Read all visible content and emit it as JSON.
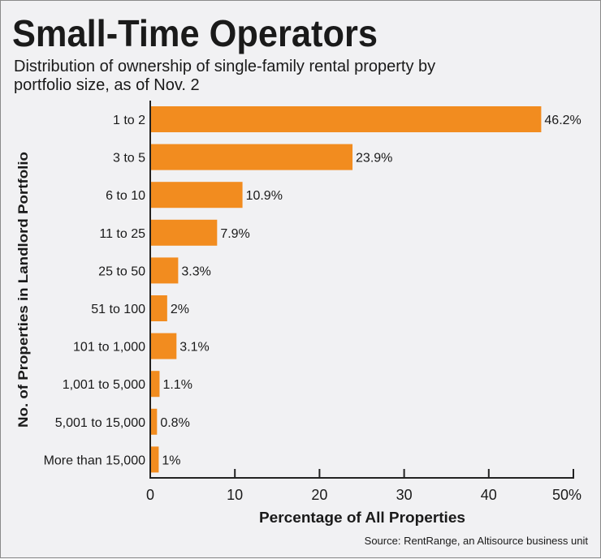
{
  "chart_data": {
    "type": "bar",
    "orientation": "horizontal",
    "title": "Small-Time Operators",
    "subtitle_lines": [
      "Distribution of ownership of single-family rental property by",
      "portfolio size, as of Nov. 2"
    ],
    "xlabel": "Percentage of All Properties",
    "ylabel": "No. of Properties in Landlord Portfolio",
    "source": "Source: RentRange, an Altisource business unit",
    "categories": [
      "1 to 2",
      "3 to 5",
      "6 to 10",
      "11 to 25",
      "25 to 50",
      "51 to 100",
      "101 to 1,000",
      "1,001 to 5,000",
      "5,001 to 15,000",
      "More than 15,000"
    ],
    "values": [
      46.2,
      23.9,
      10.9,
      7.9,
      3.3,
      2,
      3.1,
      1.1,
      0.8,
      1
    ],
    "data_labels": [
      "46.2%",
      "23.9%",
      "10.9%",
      "7.9%",
      "3.3%",
      "2%",
      "3.1%",
      "1.1%",
      "0.8%",
      "1%"
    ],
    "xlim": [
      0,
      50
    ],
    "xticks": [
      0,
      10,
      20,
      30,
      40,
      50
    ],
    "xtick_labels": [
      "0",
      "10",
      "20",
      "30",
      "40",
      "50%"
    ],
    "grid": false,
    "bar_color": "#f28c1f"
  }
}
